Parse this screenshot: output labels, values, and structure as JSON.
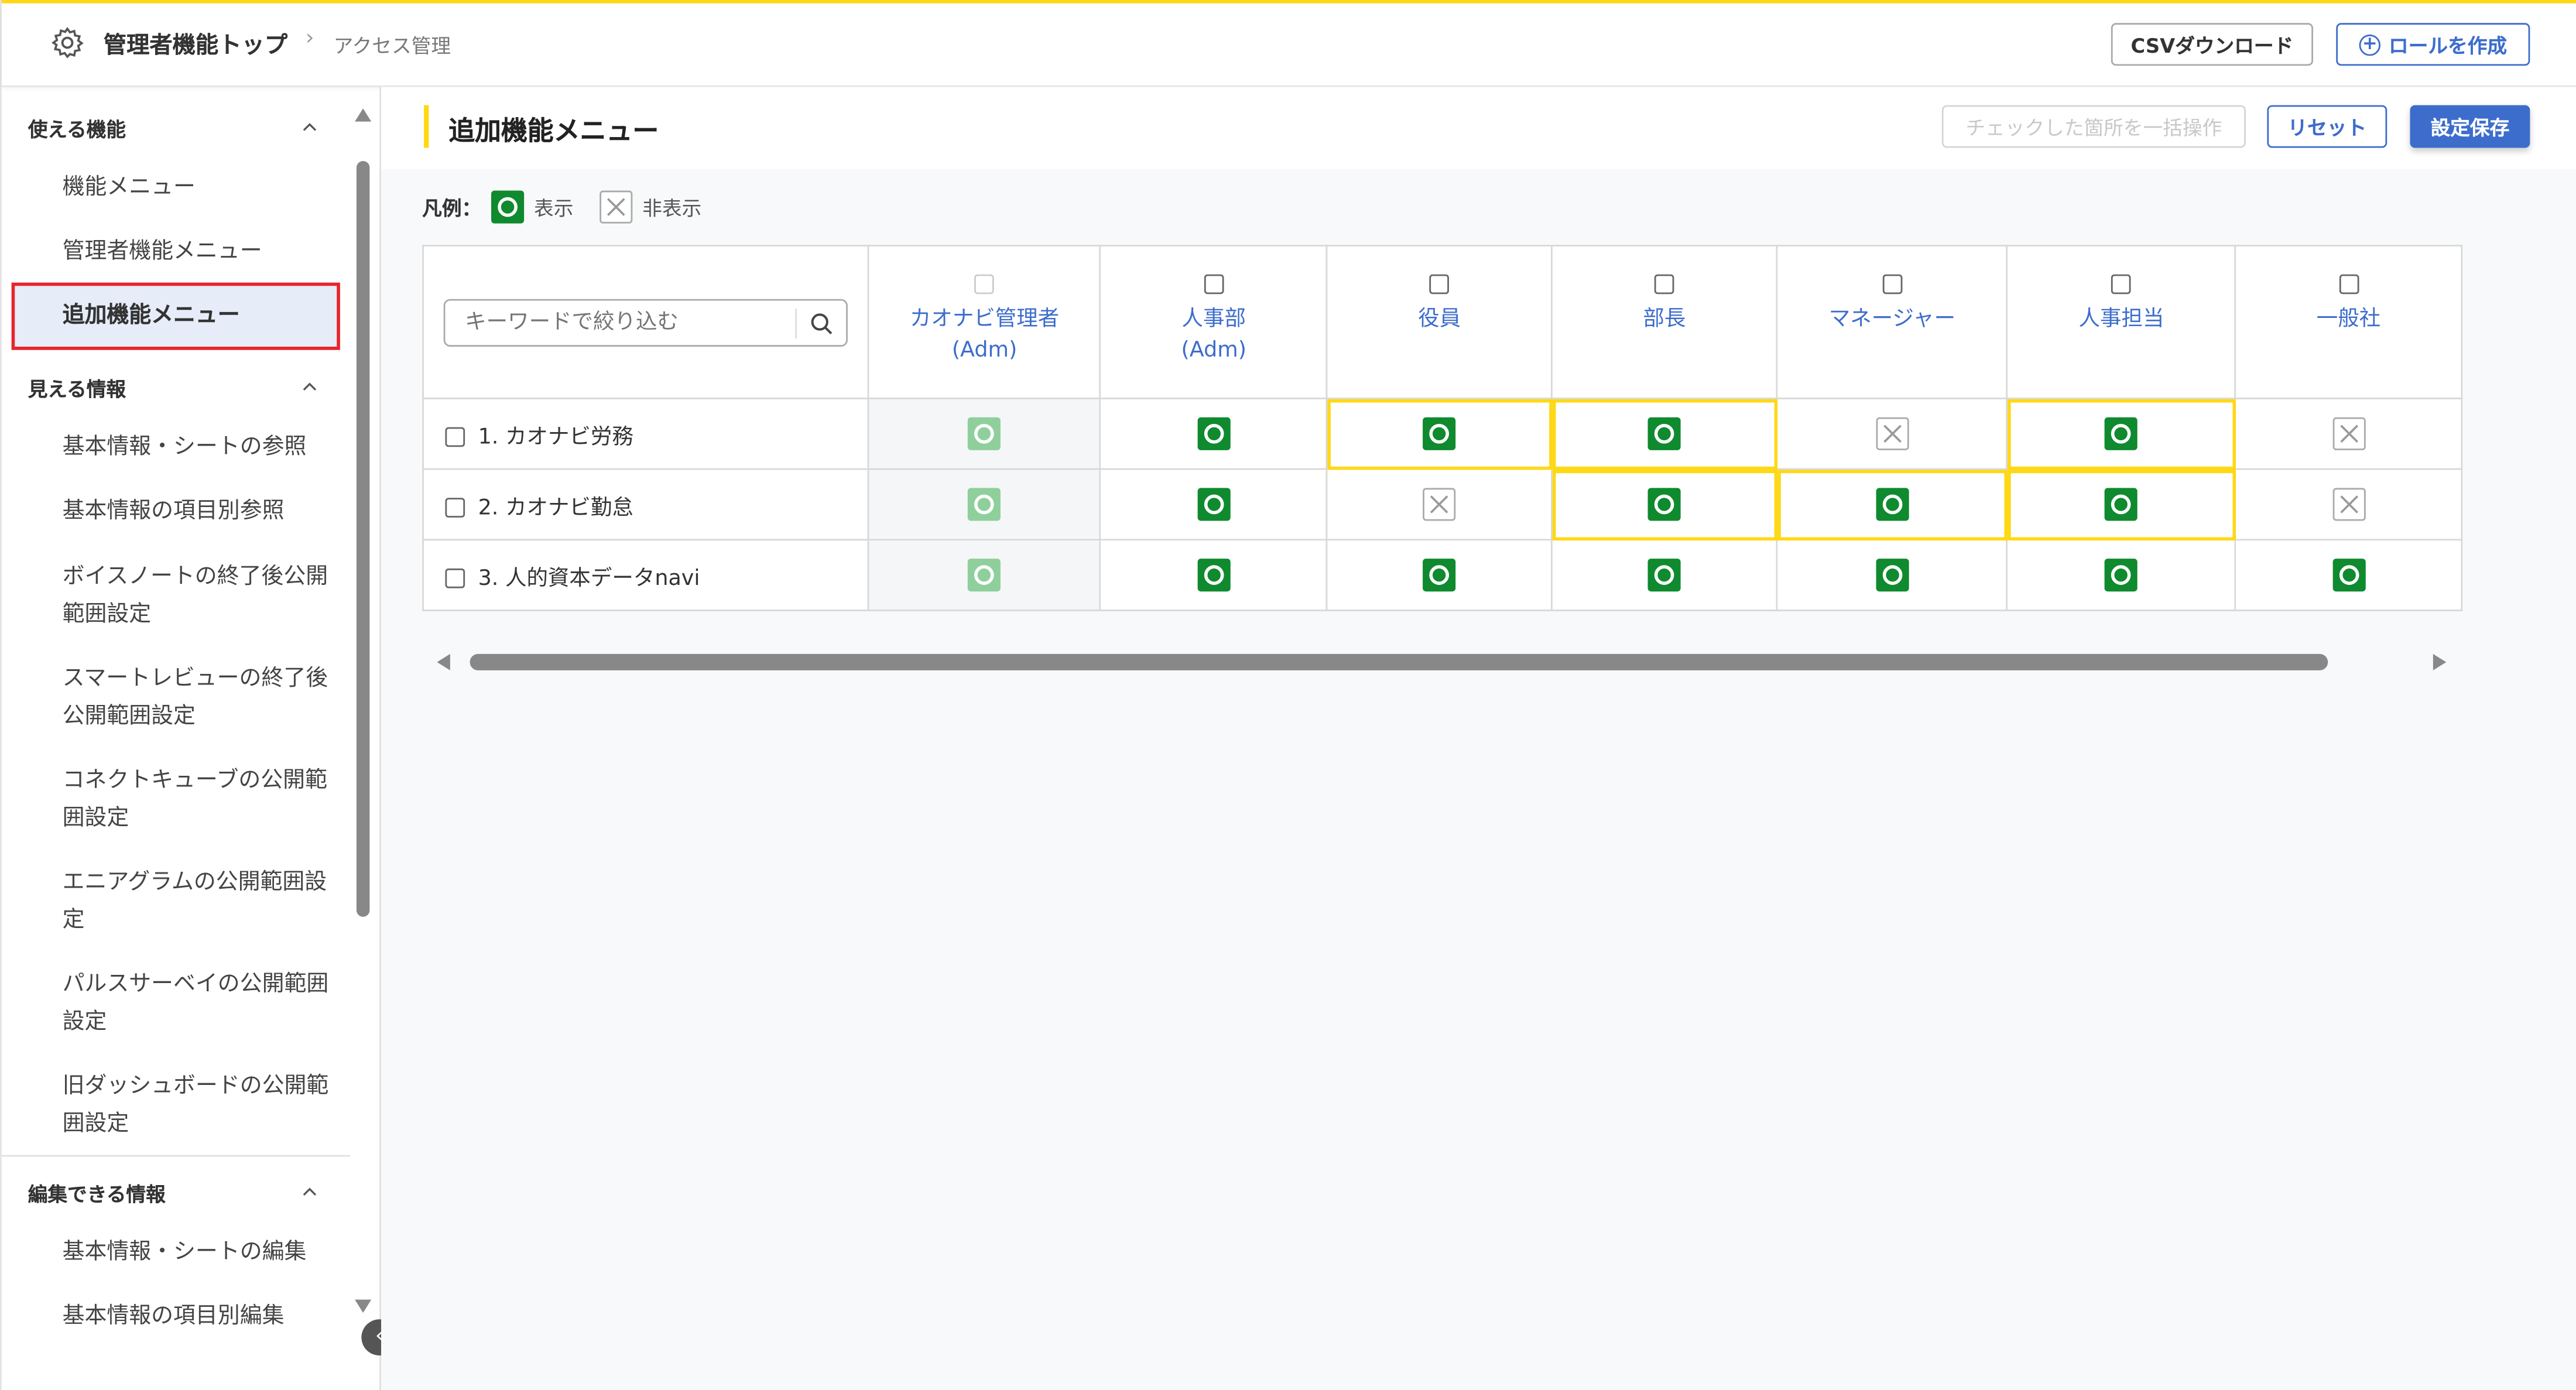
{
  "header": {
    "breadcrumb_root": "管理者機能トップ",
    "breadcrumb_current": "アクセス管理",
    "csv_button": "CSVダウンロード",
    "create_role_button": "ロールを作成"
  },
  "sidebar": {
    "sections": [
      {
        "title": "使える機能",
        "items": [
          "機能メニュー",
          "管理者機能メニュー",
          "追加機能メニュー"
        ]
      },
      {
        "title": "見える情報",
        "items": [
          "基本情報・シートの参照",
          "基本情報の項目別参照",
          "ボイスノートの終了後公開範囲設定",
          "スマートレビューの終了後公開範囲設定",
          "コネクトキューブの公開範囲設定",
          "エニアグラムの公開範囲設定",
          "パルスサーベイの公開範囲設定",
          "旧ダッシュボードの公開範囲設定"
        ]
      },
      {
        "title": "編集できる情報",
        "items": [
          "基本情報・シートの編集",
          "基本情報の項目別編集"
        ]
      }
    ],
    "selected": "追加機能メニュー"
  },
  "main": {
    "title": "追加機能メニュー",
    "bulk_button": "チェックした箇所を一括操作",
    "reset_button": "リセット",
    "save_button": "設定保存",
    "legend": {
      "label": "凡例：",
      "show": "表示",
      "hide": "非表示"
    },
    "search_placeholder": "キーワードで絞り込む",
    "columns": [
      [
        "カオナビ管理者",
        "(Adm)"
      ],
      [
        "人事部",
        "(Adm)"
      ],
      [
        "役員",
        ""
      ],
      [
        "部長",
        ""
      ],
      [
        "マネージャー",
        ""
      ],
      [
        "人事担当",
        ""
      ],
      [
        "一般社",
        ""
      ]
    ],
    "rows": [
      {
        "label": "1. カオナビ労務",
        "values": [
          "show",
          "show",
          "show",
          "show",
          "hide",
          "show",
          "hide"
        ],
        "changed": [
          false,
          false,
          true,
          true,
          false,
          true,
          false
        ]
      },
      {
        "label": "2. カオナビ勤怠",
        "values": [
          "show",
          "show",
          "hide",
          "show",
          "show",
          "show",
          "hide"
        ],
        "changed": [
          false,
          false,
          false,
          true,
          true,
          true,
          false
        ]
      },
      {
        "label": "3. 人的資本データnavi",
        "values": [
          "show",
          "show",
          "show",
          "show",
          "show",
          "show",
          "show"
        ],
        "changed": [
          false,
          false,
          false,
          false,
          false,
          false,
          false
        ]
      }
    ]
  },
  "colors": {
    "accent": "#ffd814",
    "primary": "#3d6dcc",
    "show": "#0f8a2e",
    "selected_outline": "#e8242b"
  }
}
